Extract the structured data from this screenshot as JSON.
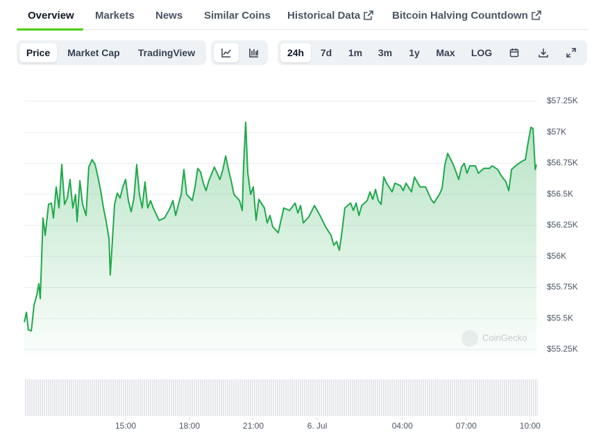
{
  "tabs": [
    "Overview",
    "Markets",
    "News",
    "Similar Coins",
    "Historical Data",
    "Bitcoin Halving Countdown"
  ],
  "toolbar": {
    "metrics": [
      "Price",
      "Market Cap",
      "TradingView"
    ],
    "ranges": [
      "24h",
      "7d",
      "1m",
      "3m",
      "1y",
      "Max",
      "LOG"
    ]
  },
  "chart_data": {
    "type": "line",
    "watermark": "CoinGecko",
    "color": "#1ea84a",
    "grid": true,
    "x": [
      10.24,
      10.34,
      10.43,
      10.57,
      10.7,
      10.83,
      10.92,
      10.99,
      11.12,
      11.22,
      11.38,
      11.51,
      11.61,
      11.74,
      11.87,
      12.0,
      12.13,
      12.26,
      12.39,
      12.52,
      12.65,
      12.72,
      12.85,
      12.98,
      13.14,
      13.27,
      13.43,
      13.57,
      13.7,
      13.83,
      13.96,
      14.09,
      14.22,
      14.28,
      14.35,
      14.48,
      14.61,
      14.74,
      14.87,
      15.0,
      15.13,
      15.26,
      15.39,
      15.52,
      15.65,
      15.78,
      15.91,
      16.04,
      16.17,
      16.3,
      16.57,
      16.83,
      17.09,
      17.22,
      17.35,
      17.48,
      17.61,
      17.74,
      17.87,
      18.13,
      18.26,
      18.39,
      18.52,
      18.65,
      18.78,
      18.91,
      19.17,
      19.43,
      19.57,
      19.7,
      19.83,
      19.96,
      20.09,
      20.35,
      20.48,
      20.54,
      20.64,
      20.74,
      20.87,
      21.0,
      21.13,
      21.26,
      21.52,
      21.65,
      21.78,
      21.91,
      22.17,
      22.43,
      22.7,
      22.96,
      23.09,
      23.22,
      23.35,
      23.61,
      23.87,
      24.13,
      24.39,
      24.65,
      24.78,
      24.91,
      25.04,
      25.17,
      25.3,
      25.57,
      25.7,
      25.83,
      25.96,
      26.09,
      26.35,
      26.48,
      26.61,
      26.74,
      26.87,
      27.0,
      27.13,
      27.26,
      27.52,
      27.65,
      27.91,
      28.04,
      28.17,
      28.43,
      28.57,
      28.83,
      29.09,
      29.35,
      29.48,
      29.74,
      29.87,
      30.0,
      30.13,
      30.39,
      30.52,
      30.65,
      30.78,
      30.91,
      31.04,
      31.17,
      31.43,
      31.57,
      31.83,
      32.09,
      32.22,
      32.48,
      32.61,
      32.87,
      33.0,
      33.13,
      33.39,
      33.65,
      33.78,
      33.91,
      34.04,
      34.14,
      34.24,
      34.3
    ],
    "values": [
      55470,
      55550,
      55410,
      55400,
      55610,
      55690,
      55780,
      55660,
      56310,
      56170,
      56420,
      56430,
      56310,
      56560,
      56390,
      56740,
      56420,
      56470,
      56620,
      56390,
      56500,
      56280,
      56610,
      56420,
      56330,
      56720,
      56780,
      56740,
      56640,
      56530,
      56390,
      56280,
      56140,
      55850,
      56050,
      56420,
      56510,
      56470,
      56560,
      56620,
      56450,
      56360,
      56470,
      56740,
      56500,
      56390,
      56600,
      56390,
      56450,
      56390,
      56290,
      56310,
      56390,
      56450,
      56330,
      56420,
      56500,
      56700,
      56500,
      56450,
      56560,
      56710,
      56680,
      56590,
      56530,
      56610,
      56720,
      56620,
      56700,
      56810,
      56700,
      56610,
      56500,
      56450,
      56370,
      56720,
      57080,
      56670,
      56500,
      56560,
      56290,
      56460,
      56390,
      56270,
      56330,
      56240,
      56190,
      56390,
      56370,
      56430,
      56350,
      56410,
      56270,
      56320,
      56410,
      56330,
      56240,
      56170,
      56090,
      56120,
      56050,
      56210,
      56390,
      56430,
      56370,
      56430,
      56330,
      56410,
      56450,
      56520,
      56460,
      56540,
      56450,
      56420,
      56640,
      56590,
      56520,
      56590,
      56570,
      56530,
      56590,
      56520,
      56640,
      56560,
      56560,
      56460,
      56430,
      56500,
      56550,
      56740,
      56830,
      56740,
      56680,
      56620,
      56720,
      56750,
      56670,
      56730,
      56730,
      56670,
      56710,
      56710,
      56730,
      56700,
      56660,
      56600,
      56530,
      56700,
      56740,
      56770,
      56780,
      56920,
      57040,
      57030,
      56700,
      56740
    ],
    "xlim": [
      10.24,
      34.3
    ],
    "xticks": [
      {
        "value": 15,
        "label": "15:00"
      },
      {
        "value": 18,
        "label": "18:00"
      },
      {
        "value": 21,
        "label": "21:00"
      },
      {
        "value": 24,
        "label": "6. Jul"
      },
      {
        "value": 28,
        "label": "04:00"
      },
      {
        "value": 31,
        "label": "07:00"
      },
      {
        "value": 34,
        "label": "10:00"
      }
    ],
    "ylim": [
      55250,
      57250
    ],
    "yticks": [
      {
        "value": 55250,
        "label": "$55.25K"
      },
      {
        "value": 55500,
        "label": "$55.5K"
      },
      {
        "value": 55750,
        "label": "$55.75K"
      },
      {
        "value": 56000,
        "label": "$56K"
      },
      {
        "value": 56250,
        "label": "$56.25K"
      },
      {
        "value": 56500,
        "label": "$56.5K"
      },
      {
        "value": 56750,
        "label": "$56.75K"
      },
      {
        "value": 57000,
        "label": "$57K"
      },
      {
        "value": 57250,
        "label": "$57.25K"
      }
    ]
  }
}
